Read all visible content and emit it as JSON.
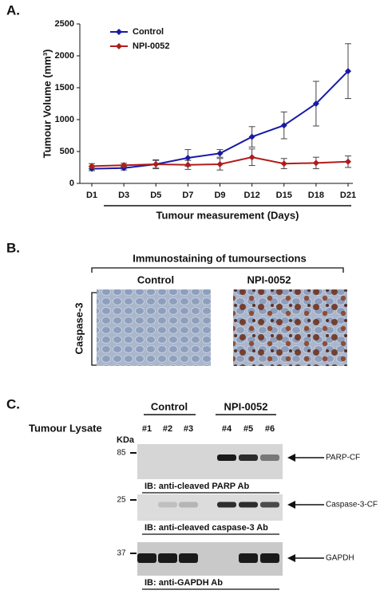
{
  "chart_data": {
    "type": "line",
    "panel_label": "A.",
    "ylabel": "Tumour Volume (mm³)",
    "xlabel": "Tumour measurement (Days)",
    "categories": [
      "D1",
      "D3",
      "D5",
      "D7",
      "D9",
      "D12",
      "D15",
      "D18",
      "D21"
    ],
    "series": [
      {
        "name": "Control",
        "color": "#1a1aa6",
        "values": [
          230,
          240,
          300,
          400,
          470,
          730,
          910,
          1250,
          1760
        ],
        "errors": [
          30,
          30,
          60,
          130,
          60,
          160,
          210,
          350,
          430
        ]
      },
      {
        "name": "NPI-0052",
        "color": "#b01c1c",
        "values": [
          270,
          285,
          300,
          290,
          300,
          410,
          310,
          320,
          340
        ],
        "errors": [
          40,
          30,
          70,
          70,
          90,
          130,
          80,
          90,
          90
        ]
      }
    ],
    "ylim": [
      0,
      2500
    ],
    "yticks": [
      0,
      500,
      1000,
      1500,
      2000,
      2500
    ],
    "legend": "top-left"
  },
  "panel_b": {
    "panel_label": "B.",
    "title": "Immunostaining of tumoursections",
    "columns": [
      "Control",
      "NPI-0052"
    ],
    "row_label": "Caspase-3"
  },
  "panel_c": {
    "panel_label": "C.",
    "groups": [
      "Control",
      "NPI-0052"
    ],
    "row_label": "Tumour Lysate",
    "lanes": [
      "#1",
      "#2",
      "#3",
      "#4",
      "#5",
      "#6"
    ],
    "unit": "KDa",
    "blots": [
      {
        "marker": "85",
        "target": "PARP-CF",
        "antibody": "IB: anti-cleaved PARP Ab"
      },
      {
        "marker": "25",
        "target": "Caspase-3-CF",
        "antibody": "IB: anti-cleaved caspase-3 Ab"
      },
      {
        "marker": "37",
        "target": "GAPDH",
        "antibody": "IB: anti-GAPDH Ab"
      }
    ]
  }
}
